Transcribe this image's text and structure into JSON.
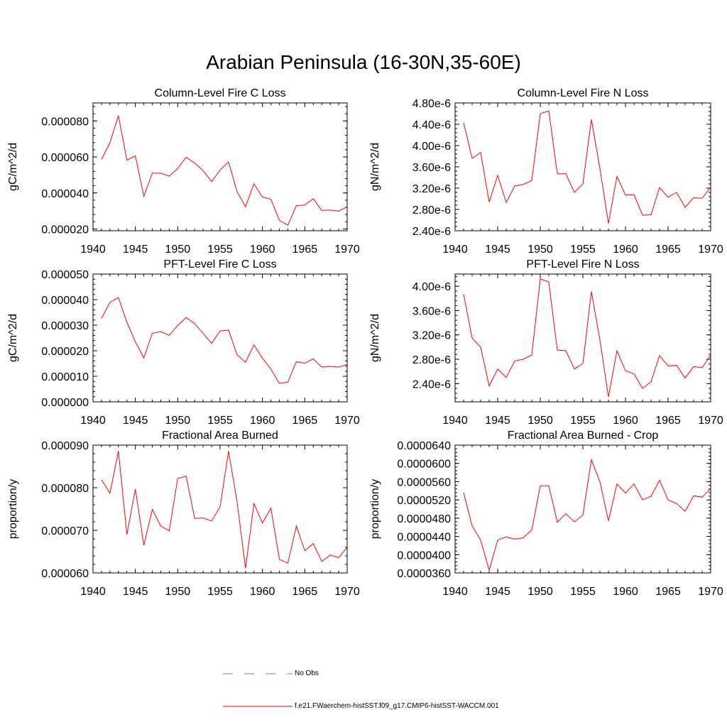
{
  "title": "Arabian Peninsula (16-30N,35-60E)",
  "legend": {
    "items": [
      {
        "label": "No Obs",
        "style": "dashed",
        "color": "#7a7ab8"
      },
      {
        "label": "f.e21.FWaerchem-histSST.f09_g17.CMIP6-histSST-WACCM.001",
        "style": "solid",
        "color": "#ff0000"
      }
    ]
  },
  "chart_data": [
    {
      "type": "line",
      "title": "Column-Level Fire C Loss",
      "ylabel": "gC/m^2/d",
      "xlim": [
        1940,
        1970
      ],
      "ylim": [
        1.9e-05,
        9e-05
      ],
      "xticks": [
        1940,
        1945,
        1950,
        1955,
        1960,
        1965,
        1970
      ],
      "yticks": [
        2e-05,
        4e-05,
        6e-05,
        8e-05
      ],
      "ytick_labels": [
        "0.000020",
        "0.000040",
        "0.000060",
        "0.000080"
      ],
      "yminor": 4e-06,
      "series": [
        {
          "color": "#ff0000",
          "x": [
            1941,
            1942,
            1943,
            1944,
            1945,
            1946,
            1947,
            1948,
            1949,
            1950,
            1951,
            1952,
            1953,
            1954,
            1955,
            1956,
            1957,
            1958,
            1959,
            1960,
            1961,
            1962,
            1963,
            1964,
            1965,
            1966,
            1967,
            1968,
            1969,
            1970
          ],
          "values": [
            5.86e-05,
            6.79e-05,
            8.3e-05,
            5.82e-05,
            6.06e-05,
            3.82e-05,
            5.1e-05,
            5.1e-05,
            4.93e-05,
            5.36e-05,
            5.98e-05,
            5.66e-05,
            5.24e-05,
            4.63e-05,
            5.27e-05,
            5.72e-05,
            4.08e-05,
            3.24e-05,
            4.51e-05,
            3.77e-05,
            3.65e-05,
            2.47e-05,
            2.21e-05,
            3.29e-05,
            3.33e-05,
            3.68e-05,
            3.03e-05,
            3.05e-05,
            2.99e-05,
            3.23e-05
          ]
        }
      ]
    },
    {
      "type": "line",
      "title": "Column-Level Fire N Loss",
      "ylabel": "gN/m^2/d",
      "xlim": [
        1940,
        1970
      ],
      "ylim": [
        2.4e-06,
        4.8e-06
      ],
      "xticks": [
        1940,
        1945,
        1950,
        1955,
        1960,
        1965,
        1970
      ],
      "yticks": [
        2.4e-06,
        2.8e-06,
        3.2e-06,
        3.6e-06,
        4e-06,
        4.4e-06,
        4.8e-06
      ],
      "ytick_labels": [
        "2.40e-6",
        "2.80e-6",
        "3.20e-6",
        "3.60e-6",
        "4.00e-6",
        "4.40e-6",
        "4.80e-6"
      ],
      "yminor": 8e-08,
      "series": [
        {
          "color": "#ff0000",
          "x": [
            1941,
            1942,
            1943,
            1944,
            1945,
            1946,
            1947,
            1948,
            1949,
            1950,
            1951,
            1952,
            1953,
            1954,
            1955,
            1956,
            1957,
            1958,
            1959,
            1960,
            1961,
            1962,
            1963,
            1964,
            1965,
            1966,
            1967,
            1968,
            1969,
            1970
          ],
          "values": [
            4.43e-06,
            3.76e-06,
            3.87e-06,
            2.94e-06,
            3.44e-06,
            2.93e-06,
            3.24e-06,
            3.27e-06,
            3.34e-06,
            4.6e-06,
            4.65e-06,
            3.47e-06,
            3.47e-06,
            3.12e-06,
            3.28e-06,
            4.49e-06,
            3.57e-06,
            2.54e-06,
            3.42e-06,
            3.07e-06,
            3.08e-06,
            2.69e-06,
            2.7e-06,
            3.21e-06,
            3.03e-06,
            3.12e-06,
            2.84e-06,
            3.02e-06,
            3.01e-06,
            3.22e-06
          ]
        }
      ]
    },
    {
      "type": "line",
      "title": "PFT-Level Fire C Loss",
      "ylabel": "gC/m^2/d",
      "xlim": [
        1940,
        1970
      ],
      "ylim": [
        0,
        5e-05
      ],
      "xticks": [
        1940,
        1945,
        1950,
        1955,
        1960,
        1965,
        1970
      ],
      "yticks": [
        0,
        1e-05,
        2e-05,
        3e-05,
        4e-05,
        5e-05
      ],
      "ytick_labels": [
        "0.000000",
        "0.000010",
        "0.000020",
        "0.000030",
        "0.000040",
        "0.000050"
      ],
      "yminor": 2e-06,
      "series": [
        {
          "color": "#ff0000",
          "x": [
            1941,
            1942,
            1943,
            1944,
            1945,
            1946,
            1947,
            1948,
            1949,
            1950,
            1951,
            1952,
            1953,
            1954,
            1955,
            1956,
            1957,
            1958,
            1959,
            1960,
            1961,
            1962,
            1963,
            1964,
            1965,
            1966,
            1967,
            1968,
            1969,
            1970
          ],
          "values": [
            3.26e-05,
            3.89e-05,
            4.08e-05,
            3.11e-05,
            2.35e-05,
            1.72e-05,
            2.68e-05,
            2.75e-05,
            2.6e-05,
            2.99e-05,
            3.3e-05,
            3.06e-05,
            2.68e-05,
            2.29e-05,
            2.77e-05,
            2.81e-05,
            1.84e-05,
            1.55e-05,
            2.23e-05,
            1.71e-05,
            1.28e-05,
            7.2e-06,
            7.7e-06,
            1.57e-05,
            1.51e-05,
            1.68e-05,
            1.36e-05,
            1.39e-05,
            1.36e-05,
            1.46e-05
          ]
        }
      ]
    },
    {
      "type": "line",
      "title": "PFT-Level Fire N Loss",
      "ylabel": "gN/m^2/d",
      "xlim": [
        1940,
        1970
      ],
      "ylim": [
        2.1e-06,
        4.2e-06
      ],
      "xticks": [
        1940,
        1945,
        1950,
        1955,
        1960,
        1965,
        1970
      ],
      "yticks": [
        2.4e-06,
        2.8e-06,
        3.2e-06,
        3.6e-06,
        4e-06
      ],
      "ytick_labels": [
        "2.40e-6",
        "2.80e-6",
        "3.20e-6",
        "3.60e-6",
        "4.00e-6"
      ],
      "yminor": 8e-08,
      "series": [
        {
          "color": "#ff0000",
          "x": [
            1941,
            1942,
            1943,
            1944,
            1945,
            1946,
            1947,
            1948,
            1949,
            1950,
            1951,
            1952,
            1953,
            1954,
            1955,
            1956,
            1957,
            1958,
            1959,
            1960,
            1961,
            1962,
            1963,
            1964,
            1965,
            1966,
            1967,
            1968,
            1969,
            1970
          ],
          "values": [
            3.87e-06,
            3.15e-06,
            3e-06,
            2.36e-06,
            2.64e-06,
            2.5e-06,
            2.77e-06,
            2.8e-06,
            2.87e-06,
            4.12e-06,
            4.07e-06,
            2.95e-06,
            2.94e-06,
            2.64e-06,
            2.73e-06,
            3.91e-06,
            3.12e-06,
            2.18e-06,
            2.94e-06,
            2.61e-06,
            2.56e-06,
            2.32e-06,
            2.43e-06,
            2.86e-06,
            2.69e-06,
            2.7e-06,
            2.49e-06,
            2.68e-06,
            2.66e-06,
            2.87e-06
          ]
        }
      ]
    },
    {
      "type": "line",
      "title": "Fractional Area Burned",
      "ylabel": "proportion/y",
      "xlim": [
        1940,
        1970
      ],
      "ylim": [
        6e-05,
        9e-05
      ],
      "xticks": [
        1940,
        1945,
        1950,
        1955,
        1960,
        1965,
        1970
      ],
      "yticks": [
        6e-05,
        7e-05,
        8e-05,
        9e-05
      ],
      "ytick_labels": [
        "0.000060",
        "0.000070",
        "0.000080",
        "0.000090"
      ],
      "yminor": 2e-06,
      "series": [
        {
          "color": "#ff0000",
          "x": [
            1941,
            1942,
            1943,
            1944,
            1945,
            1946,
            1947,
            1948,
            1949,
            1950,
            1951,
            1952,
            1953,
            1954,
            1955,
            1956,
            1957,
            1958,
            1959,
            1960,
            1961,
            1962,
            1963,
            1964,
            1965,
            1966,
            1967,
            1968,
            1969,
            1970
          ],
          "values": [
            8.19e-05,
            7.87e-05,
            8.86e-05,
            6.9e-05,
            7.97e-05,
            6.65e-05,
            7.49e-05,
            7.1e-05,
            6.99e-05,
            8.22e-05,
            8.27e-05,
            7.28e-05,
            7.29e-05,
            7.22e-05,
            7.55e-05,
            8.86e-05,
            7.68e-05,
            6.11e-05,
            7.63e-05,
            7.17e-05,
            7.52e-05,
            6.32e-05,
            6.23e-05,
            7.1e-05,
            6.52e-05,
            6.69e-05,
            6.27e-05,
            6.42e-05,
            6.36e-05,
            6.6e-05
          ]
        }
      ]
    },
    {
      "type": "line",
      "title": "Fractional Area Burned - Crop",
      "ylabel": "proportion/y",
      "xlim": [
        1940,
        1970
      ],
      "ylim": [
        3.6e-05,
        6.4e-05
      ],
      "xticks": [
        1940,
        1945,
        1950,
        1955,
        1960,
        1965,
        1970
      ],
      "yticks": [
        3.6e-05,
        4e-05,
        4.4e-05,
        4.8e-05,
        5.2e-05,
        5.6e-05,
        6e-05,
        6.4e-05
      ],
      "ytick_labels": [
        "0.0000360",
        "0.0000400",
        "0.0000440",
        "0.0000480",
        "0.0000520",
        "0.0000560",
        "0.0000600",
        "0.0000640"
      ],
      "yminor": 8e-07,
      "series": [
        {
          "color": "#ff0000",
          "x": [
            1941,
            1942,
            1943,
            1944,
            1945,
            1946,
            1947,
            1948,
            1949,
            1950,
            1951,
            1952,
            1953,
            1954,
            1955,
            1956,
            1957,
            1958,
            1959,
            1960,
            1961,
            1962,
            1963,
            1964,
            1965,
            1966,
            1967,
            1968,
            1969,
            1970
          ],
          "values": [
            5.36e-05,
            4.63e-05,
            4.32e-05,
            3.66e-05,
            4.32e-05,
            4.39e-05,
            4.34e-05,
            4.37e-05,
            4.54e-05,
            5.51e-05,
            5.51e-05,
            4.71e-05,
            4.9e-05,
            4.72e-05,
            4.87e-05,
            6.08e-05,
            5.6e-05,
            4.74e-05,
            5.55e-05,
            5.35e-05,
            5.55e-05,
            5.2e-05,
            5.28e-05,
            5.63e-05,
            5.2e-05,
            5.12e-05,
            4.95e-05,
            5.29e-05,
            5.26e-05,
            5.45e-05
          ]
        }
      ]
    }
  ]
}
